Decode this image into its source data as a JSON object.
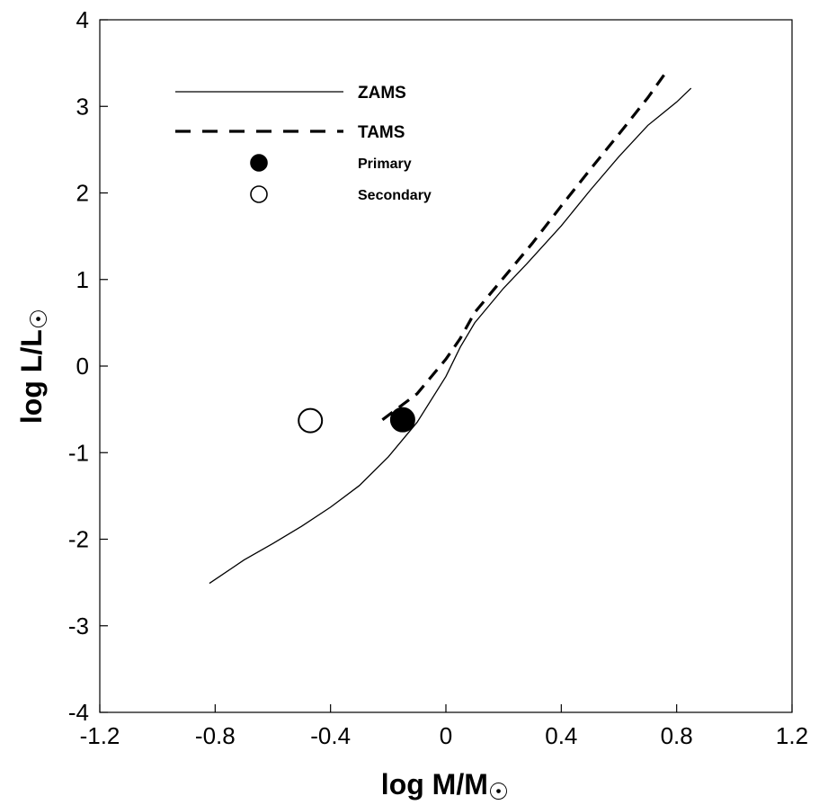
{
  "chart_data": {
    "type": "scatter",
    "title": "",
    "xlabel": "log M/M",
    "ylabel": "log L/L",
    "sun_symbol": "☉",
    "xlim": [
      -1.2,
      1.2
    ],
    "ylim": [
      -4,
      4
    ],
    "xticks": [
      -1.2,
      -0.8,
      -0.4,
      0,
      0.4,
      0.8,
      1.2
    ],
    "xtick_labels": [
      "-1.2",
      "-0.8",
      "-0.4",
      "0",
      "0.4",
      "0.8",
      "1.2"
    ],
    "yticks": [
      -4,
      -3,
      -2,
      -1,
      0,
      1,
      2,
      3,
      4
    ],
    "ytick_labels": [
      "-4",
      "-3",
      "-2",
      "-1",
      "0",
      "1",
      "2",
      "3",
      "4"
    ],
    "grid": false,
    "legend_position": "top-left",
    "series": [
      {
        "name": "ZAMS",
        "style": "solid-line",
        "points": [
          [
            -0.82,
            -2.51
          ],
          [
            -0.7,
            -2.24
          ],
          [
            -0.6,
            -2.05
          ],
          [
            -0.5,
            -1.85
          ],
          [
            -0.4,
            -1.63
          ],
          [
            -0.3,
            -1.38
          ],
          [
            -0.2,
            -1.05
          ],
          [
            -0.1,
            -0.65
          ],
          [
            0.0,
            -0.12
          ],
          [
            0.05,
            0.22
          ],
          [
            0.1,
            0.5
          ],
          [
            0.2,
            0.9
          ],
          [
            0.28,
            1.18
          ],
          [
            0.4,
            1.62
          ],
          [
            0.5,
            2.03
          ],
          [
            0.6,
            2.42
          ],
          [
            0.7,
            2.78
          ],
          [
            0.8,
            3.05
          ],
          [
            0.85,
            3.21
          ]
        ]
      },
      {
        "name": "TAMS",
        "style": "dashed-line",
        "points": [
          [
            -0.22,
            -0.62
          ],
          [
            -0.1,
            -0.32
          ],
          [
            0.0,
            0.08
          ],
          [
            0.05,
            0.32
          ],
          [
            0.1,
            0.62
          ],
          [
            0.2,
            1.02
          ],
          [
            0.3,
            1.42
          ],
          [
            0.4,
            1.85
          ],
          [
            0.5,
            2.27
          ],
          [
            0.6,
            2.68
          ],
          [
            0.7,
            3.1
          ],
          [
            0.76,
            3.38
          ]
        ]
      },
      {
        "name": "Primary",
        "style": "filled-circle",
        "points": [
          [
            -0.15,
            -0.62
          ]
        ]
      },
      {
        "name": "Secondary",
        "style": "open-circle",
        "points": [
          [
            -0.47,
            -0.63
          ]
        ]
      }
    ]
  }
}
